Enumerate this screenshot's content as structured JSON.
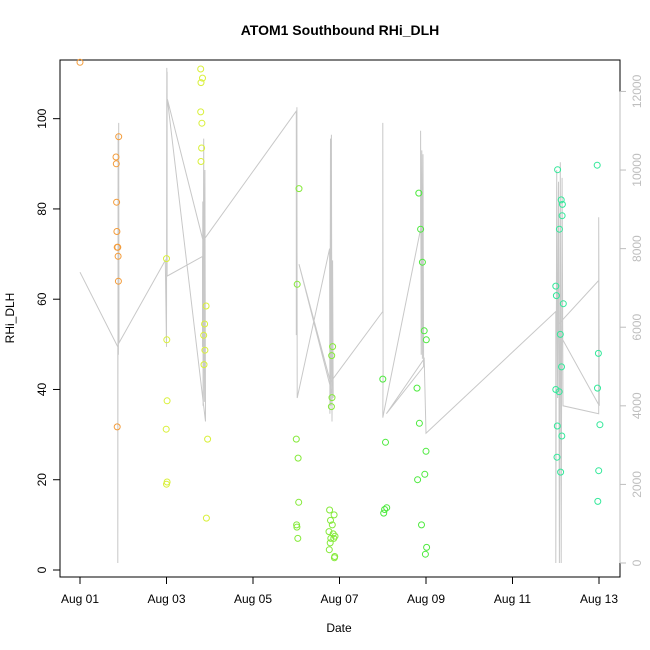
{
  "chart_data": {
    "type": "scatter",
    "title": "ATOM1 Southbound RHi_DLH",
    "xlabel": "Date",
    "ylabel": "RHi_DLH",
    "xlim": [
      "2017-08-01",
      "2017-08-13"
    ],
    "ylim": [
      0,
      113
    ],
    "y2lim": [
      0,
      12800
    ],
    "x_ticks": [
      {
        "date": "2017-08-01",
        "label": "Aug 01"
      },
      {
        "date": "2017-08-03",
        "label": "Aug 03"
      },
      {
        "date": "2017-08-05",
        "label": "Aug 05"
      },
      {
        "date": "2017-08-07",
        "label": "Aug 07"
      },
      {
        "date": "2017-08-09",
        "label": "Aug 09"
      },
      {
        "date": "2017-08-11",
        "label": "Aug 11"
      },
      {
        "date": "2017-08-13",
        "label": "Aug 13"
      }
    ],
    "y_ticks": [
      0,
      20,
      40,
      60,
      80,
      100
    ],
    "y2_ticks": [
      0,
      2000,
      4000,
      6000,
      8000,
      10000,
      12000
    ],
    "series": [
      {
        "color": "#f39c3b",
        "points": [
          [
            "2017-08-01T00:00",
            112.5
          ],
          [
            "2017-08-01T20:00",
            91.5
          ],
          [
            "2017-08-01T20:10",
            90
          ],
          [
            "2017-08-01T20:20",
            81.5
          ],
          [
            "2017-08-01T20:30",
            75
          ],
          [
            "2017-08-01T20:40",
            71.5
          ],
          [
            "2017-08-01T21:00",
            71.5
          ],
          [
            "2017-08-01T21:10",
            69.5
          ],
          [
            "2017-08-01T21:20",
            64
          ],
          [
            "2017-08-01T21:30",
            96
          ],
          [
            "2017-08-01T20:40",
            31.7
          ]
        ]
      },
      {
        "color": "#d9f03a",
        "points": [
          [
            "2017-08-03T00:00",
            69
          ],
          [
            "2017-08-03T00:10",
            51
          ],
          [
            "2017-08-02T23:50",
            31.2
          ],
          [
            "2017-08-03T00:20",
            37.5
          ],
          [
            "2017-08-03T00:00",
            19
          ],
          [
            "2017-08-03T00:20",
            19.5
          ],
          [
            "2017-08-03T19:00",
            111
          ],
          [
            "2017-08-03T19:10",
            108
          ],
          [
            "2017-08-03T20:00",
            109
          ],
          [
            "2017-08-03T19:00",
            101.5
          ],
          [
            "2017-08-03T19:40",
            99
          ],
          [
            "2017-08-03T19:30",
            93.5
          ],
          [
            "2017-08-03T19:10",
            90.5
          ],
          [
            "2017-08-03T22:00",
            58.5
          ],
          [
            "2017-08-03T21:10",
            54.5
          ],
          [
            "2017-08-03T20:40",
            52
          ],
          [
            "2017-08-03T21:20",
            48.7
          ],
          [
            "2017-08-03T20:50",
            45.5
          ],
          [
            "2017-08-03T22:50",
            29
          ],
          [
            "2017-08-03T22:10",
            11.5
          ]
        ]
      },
      {
        "color": "#85ea3a",
        "points": [
          [
            "2017-08-06T01:30",
            84.5
          ],
          [
            "2017-08-06T00:30",
            63.3
          ],
          [
            "2017-08-06T00:00",
            29
          ],
          [
            "2017-08-06T01:00",
            24.8
          ],
          [
            "2017-08-06T01:20",
            15
          ],
          [
            "2017-08-06T00:10",
            10
          ],
          [
            "2017-08-06T00:20",
            9.5
          ],
          [
            "2017-08-06T00:50",
            7
          ],
          [
            "2017-08-06T20:10",
            49.5
          ],
          [
            "2017-08-06T19:40",
            47.5
          ],
          [
            "2017-08-06T19:50",
            38.2
          ],
          [
            "2017-08-06T19:30",
            36.2
          ],
          [
            "2017-08-06T18:30",
            13.3
          ],
          [
            "2017-08-06T21:00",
            12.2
          ],
          [
            "2017-08-06T19:00",
            11
          ],
          [
            "2017-08-06T20:00",
            10
          ],
          [
            "2017-08-06T18:10",
            8.5
          ],
          [
            "2017-08-06T20:30",
            8
          ],
          [
            "2017-08-06T21:30",
            7.5
          ],
          [
            "2017-08-06T19:10",
            7
          ],
          [
            "2017-08-06T20:50",
            7
          ],
          [
            "2017-08-06T18:50",
            6
          ],
          [
            "2017-08-06T18:20",
            4.5
          ],
          [
            "2017-08-06T21:20",
            3
          ],
          [
            "2017-08-06T21:10",
            2.7
          ]
        ]
      },
      {
        "color": "#4dea3e",
        "points": [
          [
            "2017-08-08T00:00",
            42.3
          ],
          [
            "2017-08-08T01:30",
            28.3
          ],
          [
            "2017-08-08T02:10",
            13.8
          ],
          [
            "2017-08-08T01:00",
            13.4
          ],
          [
            "2017-08-08T00:30",
            12.6
          ],
          [
            "2017-08-08T20:00",
            83.5
          ],
          [
            "2017-08-08T21:00",
            75.5
          ],
          [
            "2017-08-08T22:00",
            68.2
          ],
          [
            "2017-08-08T23:00",
            53
          ],
          [
            "2017-08-09T00:10",
            51
          ],
          [
            "2017-08-08T19:00",
            40.3
          ],
          [
            "2017-08-08T20:20",
            32.5
          ],
          [
            "2017-08-09T00:00",
            26.3
          ],
          [
            "2017-08-08T23:20",
            21.2
          ],
          [
            "2017-08-08T19:20",
            20
          ],
          [
            "2017-08-08T21:30",
            10
          ],
          [
            "2017-08-09T00:20",
            5
          ],
          [
            "2017-08-08T23:40",
            3.5
          ]
        ]
      },
      {
        "color": "#33e89a",
        "points": [
          [
            "2017-08-12T01:00",
            88.7
          ],
          [
            "2017-08-12T03:00",
            82
          ],
          [
            "2017-08-12T03:40",
            81
          ],
          [
            "2017-08-12T03:30",
            78.5
          ],
          [
            "2017-08-12T02:00",
            75.5
          ],
          [
            "2017-08-12T00:00",
            62.9
          ],
          [
            "2017-08-12T00:20",
            60.8
          ],
          [
            "2017-08-12T04:10",
            59
          ],
          [
            "2017-08-12T02:30",
            52.2
          ],
          [
            "2017-08-12T03:10",
            45
          ],
          [
            "2017-08-12T00:00",
            40
          ],
          [
            "2017-08-12T01:50",
            39.5
          ],
          [
            "2017-08-12T00:50",
            31.9
          ],
          [
            "2017-08-12T03:20",
            29.7
          ],
          [
            "2017-08-12T00:40",
            25
          ],
          [
            "2017-08-12T02:40",
            21.7
          ],
          [
            "2017-08-12T23:00",
            89.7
          ],
          [
            "2017-08-12T23:40",
            48
          ],
          [
            "2017-08-12T23:10",
            40.3
          ],
          [
            "2017-08-13T00:30",
            32.2
          ],
          [
            "2017-08-12T23:50",
            22
          ],
          [
            "2017-08-12T23:20",
            15.2
          ]
        ]
      }
    ],
    "line_series": {
      "axis": "right",
      "color": "#c8c8c8",
      "points": [
        [
          "2017-08-01T00:00",
          7400
        ],
        [
          "2017-08-01T21:00",
          5500
        ],
        [
          "2017-08-01T21:00",
          0
        ],
        [
          "2017-08-01T21:10",
          10900
        ],
        [
          "2017-08-01T21:20",
          5300
        ],
        [
          "2017-08-01T21:30",
          11200
        ],
        [
          "2017-08-01T21:40",
          5600
        ],
        [
          "2017-08-02T23:20",
          7700
        ],
        [
          "2017-08-03T00:00",
          5500
        ],
        [
          "2017-08-03T00:10",
          12600
        ],
        [
          "2017-08-03T00:20",
          8000
        ],
        [
          "2017-08-03T00:20",
          12500
        ],
        [
          "2017-08-03T00:20",
          7300
        ],
        [
          "2017-08-03T20:00",
          7800
        ],
        [
          "2017-08-03T20:00",
          5500
        ],
        [
          "2017-08-03T20:10",
          9200
        ],
        [
          "2017-08-03T20:20",
          4000
        ],
        [
          "2017-08-03T20:40",
          10800
        ],
        [
          "2017-08-03T21:00",
          4100
        ],
        [
          "2017-08-03T21:20",
          10000
        ],
        [
          "2017-08-03T21:40",
          3600
        ],
        [
          "2017-08-03T00:30",
          11800
        ],
        [
          "2017-08-03T20:20",
          8200
        ],
        [
          "2017-08-06T00:00",
          11500
        ],
        [
          "2017-08-06T00:00",
          5800
        ],
        [
          "2017-08-06T00:20",
          11600
        ],
        [
          "2017-08-06T00:30",
          4200
        ],
        [
          "2017-08-06T18:30",
          8000
        ],
        [
          "2017-08-06T18:40",
          3800
        ],
        [
          "2017-08-06T19:00",
          10800
        ],
        [
          "2017-08-06T19:10",
          4000
        ],
        [
          "2017-08-06T19:30",
          10900
        ],
        [
          "2017-08-06T19:50",
          3600
        ],
        [
          "2017-08-06T20:10",
          7700
        ],
        [
          "2017-08-06T20:30",
          4200
        ],
        [
          "2017-08-06T01:30",
          7600
        ],
        [
          "2017-08-06T19:00",
          4600
        ],
        [
          "2017-08-08T00:00",
          6400
        ],
        [
          "2017-08-08T00:00",
          11200
        ],
        [
          "2017-08-08T00:10",
          4900
        ],
        [
          "2017-08-08T00:00",
          3700
        ],
        [
          "2017-08-08T21:00",
          8500
        ],
        [
          "2017-08-08T21:00",
          11000
        ],
        [
          "2017-08-08T21:20",
          5300
        ],
        [
          "2017-08-08T21:40",
          10500
        ],
        [
          "2017-08-08T22:00",
          5200
        ],
        [
          "2017-08-08T22:20",
          10400
        ],
        [
          "2017-08-08T22:40",
          5000
        ],
        [
          "2017-08-08T02:00",
          3800
        ],
        [
          "2017-08-08T23:00",
          5200
        ],
        [
          "2017-08-09T00:00",
          3300
        ],
        [
          "2017-08-12T00:00",
          6400
        ],
        [
          "2017-08-12T00:00",
          0
        ],
        [
          "2017-08-12T00:30",
          10000
        ],
        [
          "2017-08-12T01:00",
          4200
        ],
        [
          "2017-08-12T01:30",
          9700
        ],
        [
          "2017-08-12T02:00",
          0
        ],
        [
          "2017-08-12T02:30",
          10200
        ],
        [
          "2017-08-12T03:00",
          0
        ],
        [
          "2017-08-12T03:30",
          9800
        ],
        [
          "2017-08-12T04:00",
          4000
        ],
        [
          "2017-08-12T23:50",
          3800
        ],
        [
          "2017-08-12T23:50",
          8800
        ],
        [
          "2017-08-13T00:10",
          4000
        ],
        [
          "2017-08-12T00:00",
          6000
        ],
        [
          "2017-08-13T00:00",
          7200
        ]
      ]
    },
    "grid": false,
    "legend": "none"
  }
}
